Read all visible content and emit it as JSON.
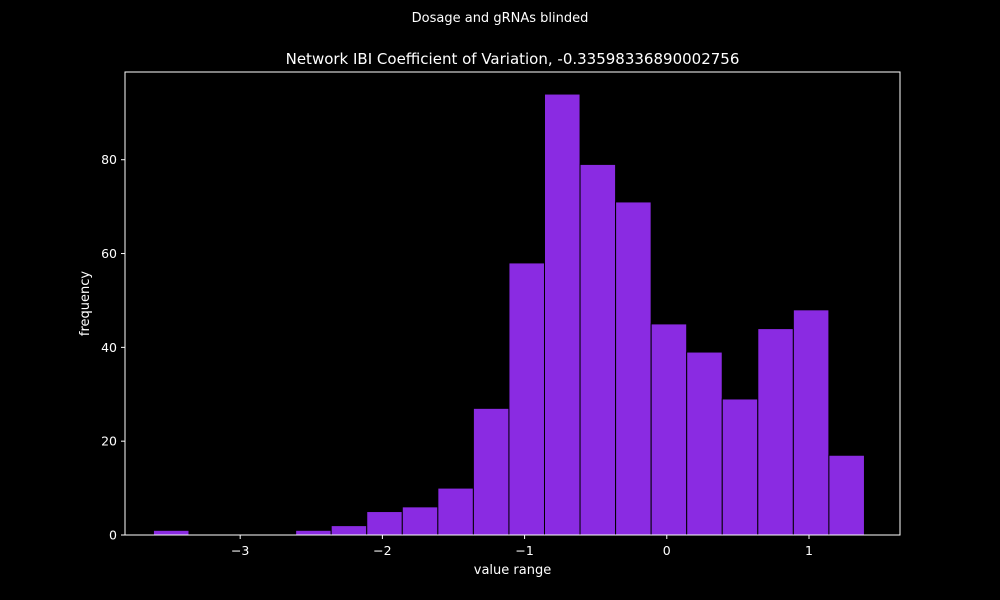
{
  "figure": {
    "suptitle": "Dosage and gRNAs blinded",
    "background": "#000000",
    "foreground": "#ffffff"
  },
  "chart_data": {
    "type": "bar",
    "title": "Network IBI Coefficient of Variation, -0.33598336890002756",
    "xlabel": "value range",
    "ylabel": "frequency",
    "bar_color": "#8a2be2",
    "bar_edge_color": "#000000",
    "bin_edges": [
      -3.61,
      -3.36,
      -3.11,
      -2.86,
      -2.61,
      -2.36,
      -2.11,
      -1.86,
      -1.61,
      -1.36,
      -1.11,
      -0.86,
      -0.61,
      -0.36,
      -0.11,
      0.14,
      0.39,
      0.64,
      0.89,
      1.14,
      1.39
    ],
    "values": [
      1,
      0,
      0,
      0,
      1,
      2,
      5,
      6,
      10,
      27,
      58,
      94,
      79,
      71,
      45,
      39,
      29,
      44,
      48,
      17
    ],
    "xlim": [
      -3.81,
      1.64
    ],
    "ylim": [
      0,
      98.7
    ],
    "xticks": [
      -3,
      -2,
      -1,
      0,
      1
    ],
    "xtick_labels": [
      "−3",
      "−2",
      "−1",
      "0",
      "1"
    ],
    "yticks": [
      0,
      20,
      40,
      60,
      80
    ],
    "ytick_labels": [
      "0",
      "20",
      "40",
      "60",
      "80"
    ],
    "grid": false,
    "legend": null
  }
}
